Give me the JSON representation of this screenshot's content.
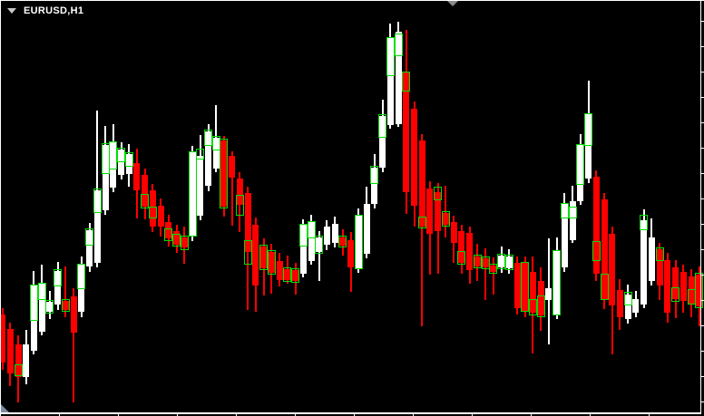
{
  "header": {
    "symbol_label": "EURUSD,H1"
  },
  "icons": {
    "dropdown": "chevron-down-icon",
    "chart_shift": "chart-shift-marker-icon",
    "corner": "scroll-corner-icon"
  },
  "colors": {
    "background": "#000000",
    "frame": "#ffffff",
    "bull_fill": "#ffffff",
    "bull_wick": "#ffffff",
    "bear_fill": "#ff0000",
    "bear_wick": "#ff0000",
    "overlay_box": "#00e000",
    "label_text": "#ffffff",
    "marker_gray": "#8a8a8a",
    "corner_triangle": "#7d8ca3"
  },
  "chart_data": {
    "type": "candlestick",
    "title": "EURUSD,H1",
    "note": "No numeric axis labels are visible in the screenshot; price/time scales are cropped to bare tick marks. Candle geometry is therefore recorded in pixel coordinates (y increases downward).",
    "units": "pixels",
    "legend": "none",
    "grid": false,
    "x_start": 2.5,
    "x_step": 8.73,
    "body_width": 7,
    "axis": {
      "right_tick_start": 23,
      "right_tick_step": 28,
      "right_tick_end": 450,
      "bottom_tick_start": 65,
      "bottom_tick_step": 65,
      "bottom_tick_end": 730
    },
    "candle_fields": [
      "high_y",
      "low_y",
      "body_top_y",
      "body_bottom_y",
      "bullish",
      "overlay_box_top_y",
      "overlay_box_bottom_y"
    ],
    "candles": [
      [
        340,
        408,
        347,
        400,
        0,
        null,
        null
      ],
      [
        356,
        426,
        363,
        412,
        0,
        null,
        null
      ],
      [
        370,
        444,
        380,
        416,
        0,
        402,
        415
      ],
      [
        364,
        424,
        380,
        416,
        1,
        null,
        null
      ],
      [
        299,
        391,
        315,
        387,
        1,
        314,
        354
      ],
      [
        292,
        370,
        313,
        366,
        1,
        312,
        331
      ],
      [
        321,
        352,
        333,
        344,
        1,
        331,
        346
      ],
      [
        289,
        342,
        299,
        336,
        1,
        297,
        316
      ],
      [
        294,
        350,
        332,
        342,
        0,
        330,
        344
      ],
      [
        318,
        444,
        327,
        367,
        0,
        null,
        null
      ],
      [
        283,
        350,
        292,
        344,
        1,
        291,
        319
      ],
      [
        246,
        300,
        254,
        294,
        1,
        252,
        271
      ],
      [
        122,
        295,
        210,
        290,
        1,
        208,
        235
      ],
      [
        139,
        237,
        160,
        232,
        1,
        158,
        192
      ],
      [
        137,
        212,
        157,
        207,
        1,
        156,
        187
      ],
      [
        157,
        198,
        165,
        193,
        1,
        163,
        179
      ],
      [
        159,
        206,
        170,
        192,
        1,
        168,
        184
      ],
      [
        164,
        241,
        180,
        210,
        0,
        null,
        null
      ],
      [
        186,
        242,
        193,
        228,
        0,
        214,
        230
      ],
      [
        203,
        256,
        210,
        250,
        0,
        228,
        241
      ],
      [
        219,
        261,
        227,
        250,
        0,
        null,
        null
      ],
      [
        237,
        272,
        245,
        263,
        0,
        252,
        266
      ],
      [
        248,
        279,
        255,
        270,
        0,
        258,
        272
      ],
      [
        250,
        291,
        262,
        273,
        0,
        260,
        276
      ],
      [
        161,
        266,
        168,
        260,
        1,
        167,
        261
      ],
      [
        149,
        243,
        172,
        238,
        1,
        164,
        176
      ],
      [
        137,
        211,
        145,
        205,
        1,
        143,
        161
      ],
      [
        116,
        190,
        152,
        186,
        1,
        150,
        166
      ],
      [
        150,
        239,
        155,
        228,
        0,
        153,
        230
      ],
      [
        167,
        249,
        172,
        196,
        0,
        null,
        null
      ],
      [
        190,
        256,
        197,
        226,
        0,
        215,
        238
      ],
      [
        206,
        342,
        213,
        278,
        0,
        265,
        292
      ],
      [
        240,
        344,
        248,
        315,
        0,
        null,
        null
      ],
      [
        263,
        326,
        272,
        296,
        0,
        270,
        298
      ],
      [
        269,
        324,
        278,
        301,
        0,
        276,
        303
      ],
      [
        279,
        316,
        288,
        309,
        0,
        null,
        null
      ],
      [
        282,
        313,
        297,
        309,
        0,
        295,
        311
      ],
      [
        290,
        325,
        298,
        310,
        0,
        296,
        312
      ],
      [
        242,
        306,
        248,
        302,
        1,
        247,
        272
      ],
      [
        237,
        292,
        245,
        288,
        1,
        244,
        263
      ],
      [
        255,
        310,
        262,
        278,
        1,
        260,
        280
      ],
      [
        243,
        276,
        250,
        270,
        1,
        null,
        null
      ],
      [
        239,
        273,
        247,
        268,
        1,
        null,
        null
      ],
      [
        253,
        282,
        262,
        271,
        0,
        260,
        273
      ],
      [
        256,
        322,
        265,
        295,
        0,
        null,
        null
      ],
      [
        230,
        301,
        238,
        296,
        1,
        237,
        297
      ],
      [
        206,
        285,
        225,
        280,
        1,
        null,
        null
      ],
      [
        170,
        230,
        185,
        225,
        1,
        183,
        203
      ],
      [
        110,
        190,
        128,
        185,
        1,
        126,
        152
      ],
      [
        26,
        142,
        42,
        138,
        1,
        41,
        84
      ],
      [
        24,
        140,
        35,
        137,
        1,
        37,
        62
      ],
      [
        33,
        236,
        80,
        212,
        0,
        79,
        101
      ],
      [
        112,
        250,
        120,
        227,
        0,
        null,
        null
      ],
      [
        148,
        360,
        155,
        250,
        0,
        239,
        252
      ],
      [
        200,
        303,
        208,
        258,
        0,
        null,
        null
      ],
      [
        202,
        302,
        212,
        255,
        0,
        206,
        221
      ],
      [
        205,
        262,
        235,
        248,
        0,
        233,
        250
      ],
      [
        238,
        290,
        245,
        268,
        0,
        null,
        null
      ],
      [
        248,
        302,
        255,
        290,
        0,
        277,
        292
      ],
      [
        250,
        313,
        257,
        298,
        0,
        null,
        null
      ],
      [
        269,
        310,
        283,
        294,
        0,
        281,
        296
      ],
      [
        274,
        331,
        285,
        295,
        0,
        283,
        297
      ],
      [
        284,
        325,
        293,
        300,
        0,
        291,
        302
      ],
      [
        272,
        301,
        282,
        295,
        1,
        280,
        297
      ],
      [
        275,
        302,
        283,
        296,
        1,
        281,
        298
      ],
      [
        283,
        347,
        290,
        340,
        0,
        null,
        null
      ],
      [
        283,
        350,
        290,
        343,
        0,
        289,
        344
      ],
      [
        283,
        390,
        300,
        345,
        0,
        330,
        348
      ],
      [
        295,
        365,
        310,
        348,
        0,
        326,
        350
      ],
      [
        263,
        380,
        318,
        331,
        1,
        null,
        null
      ],
      [
        262,
        352,
        277,
        347,
        1,
        276,
        348
      ],
      [
        213,
        300,
        225,
        295,
        1,
        224,
        241
      ],
      [
        205,
        268,
        222,
        265,
        1,
        228,
        241
      ],
      [
        148,
        226,
        160,
        222,
        1,
        159,
        204
      ],
      [
        89,
        202,
        126,
        197,
        1,
        125,
        161
      ],
      [
        188,
        310,
        195,
        302,
        0,
        266,
        288
      ],
      [
        213,
        341,
        220,
        330,
        0,
        302,
        331
      ],
      [
        250,
        391,
        258,
        337,
        0,
        null,
        null
      ],
      [
        308,
        364,
        320,
        350,
        0,
        null,
        null
      ],
      [
        314,
        357,
        325,
        352,
        1,
        322,
        337
      ],
      [
        321,
        350,
        330,
        345,
        1,
        null,
        null
      ],
      [
        231,
        340,
        243,
        336,
        1,
        237,
        254
      ],
      [
        241,
        315,
        262,
        310,
        1,
        null,
        null
      ],
      [
        268,
        331,
        275,
        315,
        0,
        273,
        288
      ],
      [
        279,
        356,
        287,
        345,
        0,
        null,
        null
      ],
      [
        287,
        351,
        295,
        330,
        0,
        317,
        333
      ],
      [
        292,
        345,
        300,
        332,
        0,
        null,
        null
      ],
      [
        297,
        350,
        305,
        335,
        0,
        319,
        336
      ],
      [
        294,
        360,
        303,
        338,
        0,
        301,
        340
      ]
    ]
  }
}
